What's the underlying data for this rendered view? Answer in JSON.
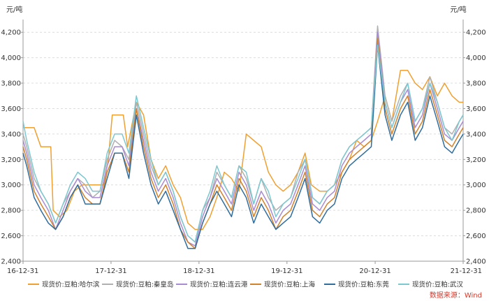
{
  "chart_data": {
    "type": "line",
    "unit_left": "元/吨",
    "unit_right": "元/吨",
    "ylim": [
      2400,
      4300
    ],
    "yticks": [
      2400,
      2600,
      2800,
      3000,
      3200,
      3400,
      3600,
      3800,
      4000,
      4200
    ],
    "ytick_labels": [
      "2,400",
      "2,600",
      "2,800",
      "3,000",
      "3,200",
      "3,400",
      "3,600",
      "3,800",
      "4,000",
      "4,200"
    ],
    "xlim": [
      "2016-12-31",
      "2021-12-31"
    ],
    "xticks": [
      "2016-12-31",
      "2017-12-31",
      "2018-12-31",
      "2019-12-31",
      "2020-12-31",
      "2021-12-31"
    ],
    "xtick_labels": [
      "16-12-31",
      "17-12-31",
      "18-12-31",
      "19-12-31",
      "20-12-31",
      "21-12-31"
    ],
    "grid": true,
    "legend_position": "bottom",
    "source": "数据来源：Wind",
    "series": [
      {
        "name": "现货价:豆粕:哈尔滨",
        "color": "#f0a030",
        "x": [
          "2016-12-31",
          "2017-01-15",
          "2017-02-15",
          "2017-03-15",
          "2017-04-15",
          "2017-04-25",
          "2017-05-05",
          "2017-06-01",
          "2017-07-01",
          "2017-08-01",
          "2017-09-01",
          "2017-10-01",
          "2017-11-01",
          "2017-12-01",
          "2017-12-20",
          "2018-01-05",
          "2018-01-20",
          "2018-02-20",
          "2018-03-10",
          "2018-04-15",
          "2018-05-15",
          "2018-06-15",
          "2018-07-15",
          "2018-08-15",
          "2018-09-15",
          "2018-10-15",
          "2018-11-15",
          "2018-12-15",
          "2019-01-15",
          "2019-02-15",
          "2019-03-15",
          "2019-04-15",
          "2019-05-15",
          "2019-06-15",
          "2019-07-15",
          "2019-08-15",
          "2019-09-15",
          "2019-10-15",
          "2019-11-15",
          "2019-12-15",
          "2020-01-15",
          "2020-02-15",
          "2020-03-15",
          "2020-04-10",
          "2020-05-15",
          "2020-06-15",
          "2020-07-15",
          "2020-08-15",
          "2020-09-15",
          "2020-10-15",
          "2020-11-15",
          "2020-12-15",
          "2021-01-10",
          "2021-02-10",
          "2021-03-10",
          "2021-04-15",
          "2021-05-15",
          "2021-06-15",
          "2021-07-15",
          "2021-08-15",
          "2021-09-15",
          "2021-10-15",
          "2021-11-15",
          "2021-12-15",
          "2021-12-31"
        ],
        "y": [
          3450,
          3450,
          3450,
          3300,
          3300,
          3300,
          2800,
          2750,
          2800,
          2950,
          3000,
          3000,
          3000,
          3000,
          3200,
          3550,
          3550,
          3550,
          3300,
          3650,
          3550,
          3200,
          3050,
          3150,
          3000,
          2900,
          2700,
          2650,
          2650,
          2750,
          2900,
          3100,
          3050,
          2950,
          3400,
          3350,
          3300,
          3100,
          3000,
          2950,
          3000,
          3100,
          3250,
          3000,
          2950,
          2950,
          3000,
          3100,
          3200,
          3350,
          3300,
          3350,
          3500,
          3700,
          3500,
          3900,
          3900,
          3800,
          3750,
          3850,
          3700,
          3800,
          3700,
          3650,
          3650
        ]
      },
      {
        "name": "现货价:豆粕:秦皇岛",
        "color": "#b0b0b0",
        "x": [
          "2016-12-31",
          "2017-01-15",
          "2017-02-15",
          "2017-03-15",
          "2017-04-15",
          "2017-05-15",
          "2017-06-15",
          "2017-07-15",
          "2017-08-15",
          "2017-09-15",
          "2017-10-15",
          "2017-11-15",
          "2017-12-15",
          "2018-01-15",
          "2018-02-15",
          "2018-03-15",
          "2018-04-15",
          "2018-05-15",
          "2018-06-15",
          "2018-07-15",
          "2018-08-15",
          "2018-09-15",
          "2018-10-15",
          "2018-11-15",
          "2018-12-15",
          "2019-01-15",
          "2019-02-15",
          "2019-03-15",
          "2019-04-15",
          "2019-05-15",
          "2019-06-15",
          "2019-07-15",
          "2019-08-15",
          "2019-09-15",
          "2019-10-15",
          "2019-11-15",
          "2019-12-15",
          "2020-01-15",
          "2020-02-15",
          "2020-03-15",
          "2020-04-15",
          "2020-05-15",
          "2020-06-15",
          "2020-07-15",
          "2020-08-15",
          "2020-09-15",
          "2020-10-15",
          "2020-11-15",
          "2020-12-15",
          "2021-01-10",
          "2021-02-10",
          "2021-03-10",
          "2021-04-15",
          "2021-05-15",
          "2021-06-15",
          "2021-07-15",
          "2021-08-15",
          "2021-09-15",
          "2021-10-15",
          "2021-11-15",
          "2021-12-15",
          "2021-12-31"
        ],
        "y": [
          3400,
          3300,
          3050,
          2950,
          2850,
          2700,
          2850,
          2950,
          3050,
          3000,
          2900,
          2950,
          3200,
          3350,
          3300,
          3200,
          3650,
          3400,
          3150,
          3000,
          3100,
          2950,
          2750,
          2600,
          2550,
          2800,
          2900,
          3100,
          3000,
          2900,
          3150,
          3050,
          2850,
          3050,
          2900,
          2800,
          2850,
          2900,
          3100,
          3200,
          2900,
          2850,
          2950,
          3000,
          3200,
          3300,
          3350,
          3400,
          3450,
          4250,
          3700,
          3500,
          3700,
          3800,
          3500,
          3600,
          3850,
          3650,
          3450,
          3400,
          3500,
          3550
        ]
      },
      {
        "name": "现货价:豆粕:连云港",
        "color": "#a98bd3",
        "x": [
          "2016-12-31",
          "2017-01-15",
          "2017-02-15",
          "2017-03-15",
          "2017-04-15",
          "2017-05-15",
          "2017-06-15",
          "2017-07-15",
          "2017-08-15",
          "2017-09-15",
          "2017-10-15",
          "2017-11-15",
          "2017-12-15",
          "2018-01-15",
          "2018-02-15",
          "2018-03-15",
          "2018-04-15",
          "2018-05-15",
          "2018-06-15",
          "2018-07-15",
          "2018-08-15",
          "2018-09-15",
          "2018-10-15",
          "2018-11-15",
          "2018-12-15",
          "2019-01-15",
          "2019-02-15",
          "2019-03-15",
          "2019-04-15",
          "2019-05-15",
          "2019-06-15",
          "2019-07-15",
          "2019-08-15",
          "2019-09-15",
          "2019-10-15",
          "2019-11-15",
          "2019-12-15",
          "2020-01-15",
          "2020-02-15",
          "2020-03-15",
          "2020-04-15",
          "2020-05-15",
          "2020-06-15",
          "2020-07-15",
          "2020-08-15",
          "2020-09-15",
          "2020-10-15",
          "2020-11-15",
          "2020-12-15",
          "2021-01-10",
          "2021-02-10",
          "2021-03-10",
          "2021-04-15",
          "2021-05-15",
          "2021-06-15",
          "2021-07-15",
          "2021-08-15",
          "2021-09-15",
          "2021-10-15",
          "2021-11-15",
          "2021-12-15",
          "2021-12-31"
        ],
        "y": [
          3350,
          3250,
          3000,
          2900,
          2800,
          2650,
          2800,
          2950,
          3050,
          2950,
          2900,
          2900,
          3150,
          3300,
          3300,
          3150,
          3600,
          3350,
          3100,
          2950,
          3050,
          2900,
          2700,
          2550,
          2520,
          2750,
          2900,
          3050,
          2950,
          2850,
          3100,
          3000,
          2800,
          2950,
          2850,
          2700,
          2800,
          2850,
          3000,
          3150,
          2850,
          2800,
          2900,
          2950,
          3150,
          3250,
          3300,
          3350,
          3400,
          4200,
          3650,
          3450,
          3650,
          3750,
          3450,
          3550,
          3800,
          3600,
          3400,
          3350,
          3450,
          3500
        ]
      },
      {
        "name": "现货价:豆粕:上海",
        "color": "#d2822a",
        "x": [
          "2016-12-31",
          "2017-01-15",
          "2017-02-15",
          "2017-03-15",
          "2017-04-15",
          "2017-05-15",
          "2017-06-15",
          "2017-07-15",
          "2017-08-15",
          "2017-09-15",
          "2017-10-15",
          "2017-11-15",
          "2017-12-15",
          "2018-01-15",
          "2018-02-15",
          "2018-03-15",
          "2018-04-15",
          "2018-05-15",
          "2018-06-15",
          "2018-07-15",
          "2018-08-15",
          "2018-09-15",
          "2018-10-15",
          "2018-11-15",
          "2018-12-15",
          "2019-01-15",
          "2019-02-15",
          "2019-03-15",
          "2019-04-15",
          "2019-05-15",
          "2019-06-15",
          "2019-07-15",
          "2019-08-15",
          "2019-09-15",
          "2019-10-15",
          "2019-11-15",
          "2019-12-15",
          "2020-01-15",
          "2020-02-15",
          "2020-03-15",
          "2020-04-15",
          "2020-05-15",
          "2020-06-15",
          "2020-07-15",
          "2020-08-15",
          "2020-09-15",
          "2020-10-15",
          "2020-11-15",
          "2020-12-15",
          "2021-01-10",
          "2021-02-10",
          "2021-03-10",
          "2021-04-15",
          "2021-05-15",
          "2021-06-15",
          "2021-07-15",
          "2021-08-15",
          "2021-09-15",
          "2021-10-15",
          "2021-11-15",
          "2021-12-15",
          "2021-12-31"
        ],
        "y": [
          3300,
          3200,
          2950,
          2850,
          2750,
          2650,
          2750,
          2900,
          3000,
          2900,
          2850,
          2850,
          3100,
          3250,
          3250,
          3100,
          3600,
          3300,
          3050,
          2900,
          3000,
          2850,
          2650,
          2550,
          2500,
          2700,
          2850,
          3000,
          2900,
          2800,
          3050,
          2950,
          2750,
          2900,
          2800,
          2650,
          2750,
          2800,
          2950,
          3100,
          2800,
          2750,
          2850,
          2900,
          3100,
          3200,
          3250,
          3300,
          3350,
          4150,
          3600,
          3400,
          3600,
          3700,
          3400,
          3500,
          3750,
          3550,
          3350,
          3300,
          3400,
          3450
        ]
      },
      {
        "name": "现货价:豆粕:东莞",
        "color": "#2f6d9e",
        "x": [
          "2016-12-31",
          "2017-01-15",
          "2017-02-15",
          "2017-03-15",
          "2017-04-15",
          "2017-05-15",
          "2017-06-15",
          "2017-07-15",
          "2017-08-15",
          "2017-09-15",
          "2017-10-15",
          "2017-11-15",
          "2017-12-15",
          "2018-01-15",
          "2018-02-15",
          "2018-03-15",
          "2018-04-15",
          "2018-05-15",
          "2018-06-15",
          "2018-07-15",
          "2018-08-15",
          "2018-09-15",
          "2018-10-15",
          "2018-11-15",
          "2018-12-15",
          "2019-01-15",
          "2019-02-15",
          "2019-03-15",
          "2019-04-15",
          "2019-05-15",
          "2019-06-15",
          "2019-07-15",
          "2019-08-15",
          "2019-09-15",
          "2019-10-15",
          "2019-11-15",
          "2019-12-15",
          "2020-01-15",
          "2020-02-15",
          "2020-03-15",
          "2020-04-15",
          "2020-05-15",
          "2020-06-15",
          "2020-07-15",
          "2020-08-15",
          "2020-09-15",
          "2020-10-15",
          "2020-11-15",
          "2020-12-15",
          "2021-01-10",
          "2021-02-10",
          "2021-03-10",
          "2021-04-15",
          "2021-05-15",
          "2021-06-15",
          "2021-07-15",
          "2021-08-15",
          "2021-09-15",
          "2021-10-15",
          "2021-11-15",
          "2021-12-15",
          "2021-12-31"
        ],
        "y": [
          3250,
          3150,
          2900,
          2800,
          2700,
          2650,
          2750,
          2900,
          3000,
          2850,
          2850,
          2850,
          3050,
          3250,
          3250,
          3050,
          3550,
          3250,
          3000,
          2850,
          2950,
          2800,
          2650,
          2500,
          2500,
          2700,
          2850,
          2950,
          2850,
          2750,
          3000,
          2900,
          2700,
          2850,
          2750,
          2650,
          2700,
          2750,
          2900,
          3050,
          2750,
          2700,
          2800,
          2850,
          3050,
          3150,
          3200,
          3250,
          3300,
          4100,
          3550,
          3350,
          3550,
          3650,
          3350,
          3450,
          3700,
          3500,
          3300,
          3250,
          3350,
          3400
        ]
      },
      {
        "name": "现货价:豆粕:武汉",
        "color": "#7cc8d0",
        "x": [
          "2016-12-31",
          "2017-01-15",
          "2017-02-15",
          "2017-03-15",
          "2017-04-15",
          "2017-05-15",
          "2017-06-15",
          "2017-07-15",
          "2017-08-15",
          "2017-09-15",
          "2017-10-15",
          "2017-11-15",
          "2017-12-15",
          "2018-01-15",
          "2018-02-15",
          "2018-03-15",
          "2018-04-15",
          "2018-05-15",
          "2018-06-15",
          "2018-07-15",
          "2018-08-15",
          "2018-09-15",
          "2018-10-15",
          "2018-11-15",
          "2018-12-15",
          "2019-01-15",
          "2019-02-15",
          "2019-03-15",
          "2019-04-15",
          "2019-05-15",
          "2019-06-15",
          "2019-07-15",
          "2019-08-15",
          "2019-09-15",
          "2019-10-15",
          "2019-11-15",
          "2019-12-15",
          "2020-01-15",
          "2020-02-15",
          "2020-03-15",
          "2020-04-15",
          "2020-05-15",
          "2020-06-15",
          "2020-07-15",
          "2020-08-15",
          "2020-09-15",
          "2020-10-15",
          "2020-11-15",
          "2020-12-15",
          "2021-01-10",
          "2021-02-10",
          "2021-03-10",
          "2021-04-15",
          "2021-05-15",
          "2021-06-15",
          "2021-07-15",
          "2021-08-15",
          "2021-09-15",
          "2021-10-15",
          "2021-11-15",
          "2021-12-15",
          "2021-12-31"
        ],
        "y": [
          3500,
          3350,
          3100,
          2950,
          2850,
          2700,
          2850,
          3000,
          3100,
          3050,
          2950,
          2950,
          3250,
          3400,
          3400,
          3250,
          3700,
          3450,
          3200,
          3000,
          3100,
          2950,
          2750,
          2600,
          2550,
          2800,
          2950,
          3150,
          3000,
          2900,
          3150,
          3100,
          2850,
          3050,
          2950,
          2750,
          2850,
          2900,
          3050,
          3200,
          2900,
          2850,
          2950,
          3000,
          3200,
          3300,
          3350,
          3400,
          3450,
          4100,
          3650,
          3450,
          3650,
          3800,
          3500,
          3600,
          3800,
          3650,
          3450,
          3350,
          3500,
          3550
        ]
      }
    ]
  }
}
